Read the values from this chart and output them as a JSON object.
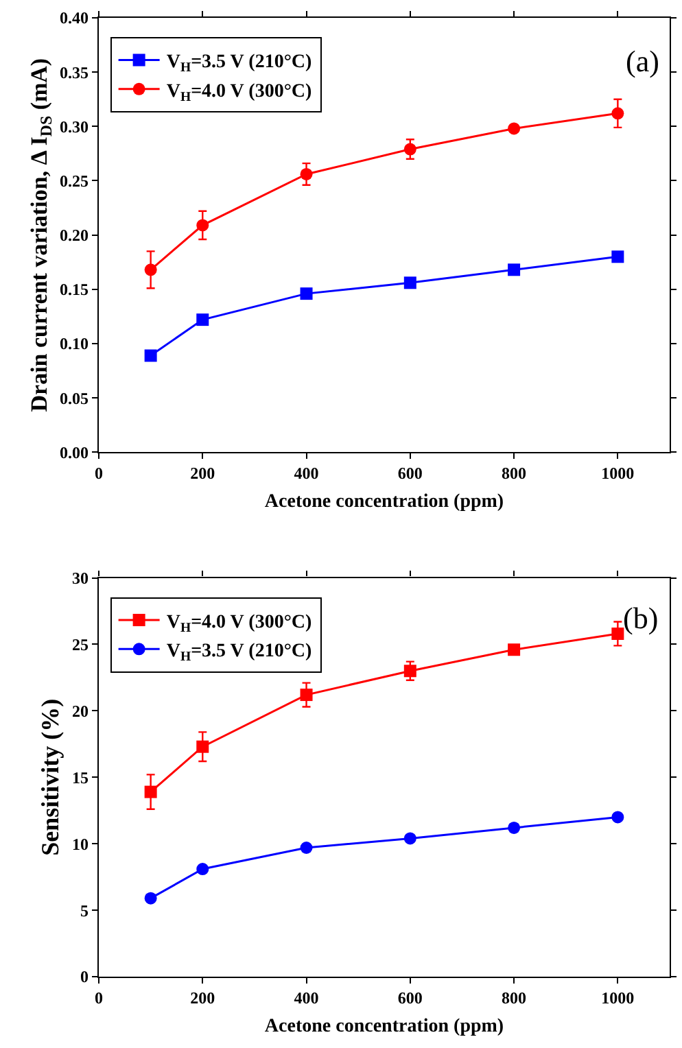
{
  "chart_data": [
    {
      "type": "line",
      "xlabel": "Acetone concentration (ppm)",
      "ylabel": "Drain current variation, Δ I$_{DS}$ (mA)",
      "x": [
        100,
        200,
        400,
        600,
        800,
        1000
      ],
      "series": [
        {
          "name": "V$_{H}$=3.5 V (210°C)",
          "color": "#0000ff",
          "marker": "square",
          "values": [
            0.089,
            0.122,
            0.146,
            0.156,
            0.168,
            0.18
          ]
        },
        {
          "name": "V$_{H}$=4.0 V (300°C)",
          "color": "#ff0000",
          "marker": "circle",
          "values": [
            0.168,
            0.209,
            0.256,
            0.279,
            0.298,
            0.312
          ],
          "errors": [
            0.017,
            0.013,
            0.01,
            0.009,
            null,
            0.013
          ]
        }
      ],
      "xlim": [
        0,
        1100
      ],
      "xticks": [
        0,
        200,
        400,
        600,
        800,
        1000
      ],
      "ylim": [
        0,
        0.4
      ],
      "yticks": [
        {
          "value": 0,
          "label": "0.00"
        },
        {
          "value": 0.05,
          "label": "0.05"
        },
        {
          "value": 0.1,
          "label": "0.10"
        },
        {
          "value": 0.15,
          "label": "0.15"
        },
        {
          "value": 0.2,
          "label": "0.20"
        },
        {
          "value": 0.25,
          "label": "0.25"
        },
        {
          "value": 0.3,
          "label": "0.30"
        },
        {
          "value": 0.35,
          "label": "0.35"
        },
        {
          "value": 0.4,
          "label": "0.40"
        }
      ],
      "legend": "top left",
      "line_style": "solid",
      "annotations": [
        "(a)"
      ]
    },
    {
      "type": "line",
      "xlabel": "Acetone concentration (ppm)",
      "ylabel": "Sensitivity (%)",
      "x": [
        100,
        200,
        400,
        600,
        800,
        1000
      ],
      "series": [
        {
          "name": "V$_{H}$=4.0 V (300°C)",
          "color": "#ff0000",
          "marker": "square",
          "values": [
            13.9,
            17.3,
            21.2,
            23.0,
            24.6,
            25.8
          ],
          "errors": [
            1.3,
            1.1,
            0.9,
            0.7,
            null,
            0.9
          ]
        },
        {
          "name": "V$_{H}$=3.5 V (210°C)",
          "color": "#0000ff",
          "marker": "circle",
          "values": [
            5.9,
            8.1,
            9.7,
            10.4,
            11.2,
            12.0
          ]
        }
      ],
      "xlim": [
        0,
        1100
      ],
      "xticks": [
        0,
        200,
        400,
        600,
        800,
        1000
      ],
      "ylim": [
        0,
        30
      ],
      "yticks": [
        0,
        5,
        10,
        15,
        20,
        25,
        30
      ],
      "legend": "top left",
      "line_style": "solid",
      "annotations": [
        "(b)"
      ]
    }
  ]
}
